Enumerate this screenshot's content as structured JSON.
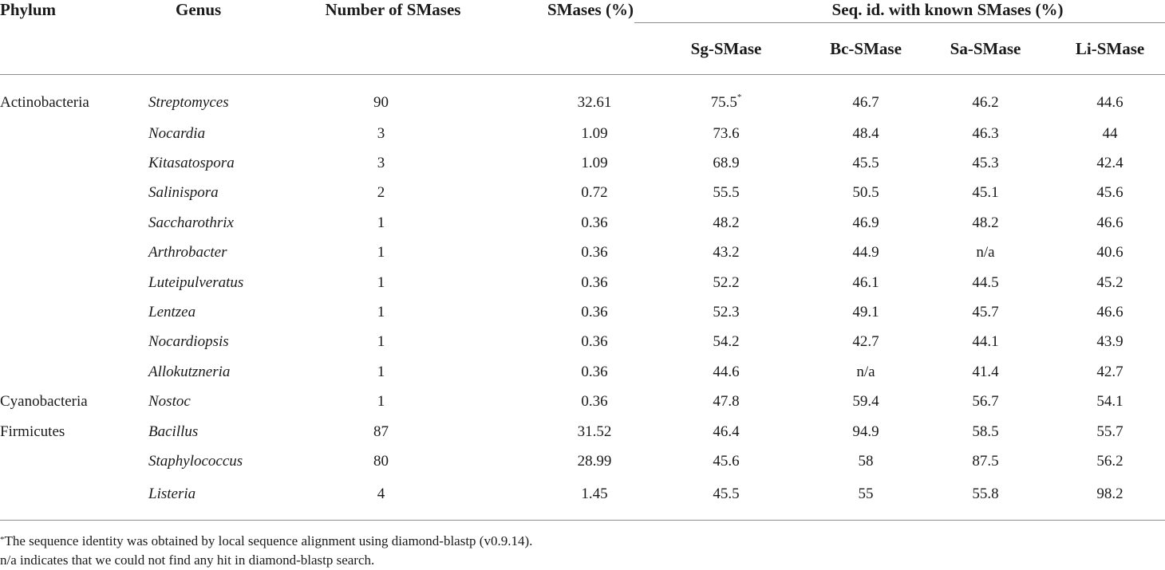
{
  "header": {
    "phylum": "Phylum",
    "genus": "Genus",
    "number_of_smases": "Number of SMases",
    "smases_pct": "SMases (%)",
    "seq_id_group": "Seq. id. with known SMases (%)",
    "sg": "Sg-SMase",
    "bc": "Bc-SMase",
    "sa": "Sa-SMase",
    "li": "Li-SMase"
  },
  "rows": [
    {
      "phylum": "Actinobacteria",
      "genus": "Streptomyces",
      "number": "90",
      "pct": "32.61",
      "sg": "75.5",
      "sg_mark": "*",
      "bc": "46.7",
      "sa": "46.2",
      "li": "44.6"
    },
    {
      "phylum": "",
      "genus": "Nocardia",
      "number": "3",
      "pct": "1.09",
      "sg": "73.6",
      "sg_mark": "",
      "bc": "48.4",
      "sa": "46.3",
      "li": "44"
    },
    {
      "phylum": "",
      "genus": "Kitasatospora",
      "number": "3",
      "pct": "1.09",
      "sg": "68.9",
      "sg_mark": "",
      "bc": "45.5",
      "sa": "45.3",
      "li": "42.4"
    },
    {
      "phylum": "",
      "genus": "Salinispora",
      "number": "2",
      "pct": "0.72",
      "sg": "55.5",
      "sg_mark": "",
      "bc": "50.5",
      "sa": "45.1",
      "li": "45.6"
    },
    {
      "phylum": "",
      "genus": "Saccharothrix",
      "number": "1",
      "pct": "0.36",
      "sg": "48.2",
      "sg_mark": "",
      "bc": "46.9",
      "sa": "48.2",
      "li": "46.6"
    },
    {
      "phylum": "",
      "genus": "Arthrobacter",
      "number": "1",
      "pct": "0.36",
      "sg": "43.2",
      "sg_mark": "",
      "bc": "44.9",
      "sa": "n/a",
      "li": "40.6"
    },
    {
      "phylum": "",
      "genus": "Luteipulveratus",
      "number": "1",
      "pct": "0.36",
      "sg": "52.2",
      "sg_mark": "",
      "bc": "46.1",
      "sa": "44.5",
      "li": "45.2"
    },
    {
      "phylum": "",
      "genus": "Lentzea",
      "number": "1",
      "pct": "0.36",
      "sg": "52.3",
      "sg_mark": "",
      "bc": "49.1",
      "sa": "45.7",
      "li": "46.6"
    },
    {
      "phylum": "",
      "genus": "Nocardiopsis",
      "number": "1",
      "pct": "0.36",
      "sg": "54.2",
      "sg_mark": "",
      "bc": "42.7",
      "sa": "44.1",
      "li": "43.9"
    },
    {
      "phylum": "",
      "genus": "Allokutzneria",
      "number": "1",
      "pct": "0.36",
      "sg": "44.6",
      "sg_mark": "",
      "bc": "n/a",
      "sa": "41.4",
      "li": "42.7"
    },
    {
      "phylum": "Cyanobacteria",
      "genus": "Nostoc",
      "number": "1",
      "pct": "0.36",
      "sg": "47.8",
      "sg_mark": "",
      "bc": "59.4",
      "sa": "56.7",
      "li": "54.1"
    },
    {
      "phylum": "Firmicutes",
      "genus": "Bacillus",
      "number": "87",
      "pct": "31.52",
      "sg": "46.4",
      "sg_mark": "",
      "bc": "94.9",
      "sa": "58.5",
      "li": "55.7"
    },
    {
      "phylum": "",
      "genus": "Staphylococcus",
      "number": "80",
      "pct": "28.99",
      "sg": "45.6",
      "sg_mark": "",
      "bc": "58",
      "sa": "87.5",
      "li": "56.2"
    },
    {
      "phylum": "",
      "genus": "Listeria",
      "number": "4",
      "pct": "1.45",
      "sg": "45.5",
      "sg_mark": "",
      "bc": "55",
      "sa": "55.8",
      "li": "98.2"
    }
  ],
  "notes": {
    "footnote_mark": "*",
    "footnote_text": "The sequence identity was obtained by local sequence alignment using diamond-blastp (v0.9.14).",
    "na_note": "n/a indicates that we could not find any hit in diamond-blastp search."
  }
}
